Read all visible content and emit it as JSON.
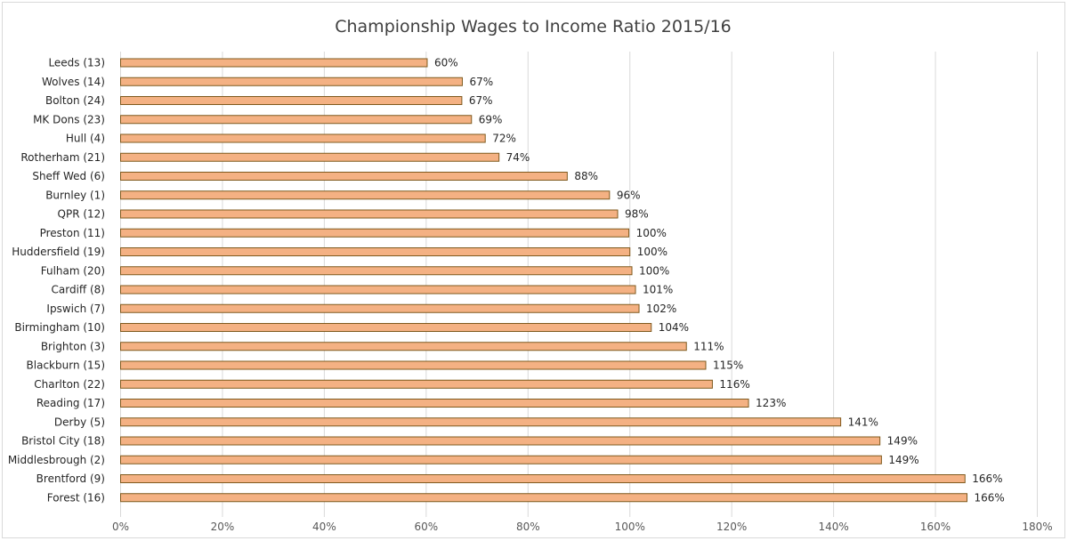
{
  "chart_data": {
    "type": "bar",
    "orientation": "horizontal",
    "title": "Championship Wages to Income Ratio 2015/16",
    "xlabel": "",
    "ylabel": "",
    "xlim": [
      0,
      180
    ],
    "x_ticks": [
      0,
      20,
      40,
      60,
      80,
      100,
      120,
      140,
      160,
      180
    ],
    "x_tick_labels": [
      "0%",
      "20%",
      "40%",
      "60%",
      "80%",
      "100%",
      "120%",
      "140%",
      "160%",
      "180%"
    ],
    "grid": true,
    "legend": "none",
    "bar_color": "#F4B183",
    "bar_edge_color": "#7F5A1E",
    "categories": [
      "Leeds (13)",
      "Wolves (14)",
      "Bolton (24)",
      "MK Dons (23)",
      "Hull (4)",
      "Rotherham (21)",
      "Sheff Wed (6)",
      "Burnley (1)",
      "QPR (12)",
      "Preston (11)",
      "Huddersfield (19)",
      "Fulham (20)",
      "Cardiff (8)",
      "Ipswich (7)",
      "Birmingham (10)",
      "Brighton (3)",
      "Blackburn (15)",
      "Charlton (22)",
      "Reading (17)",
      "Derby (5)",
      "Bristol City (18)",
      "Middlesbrough (2)",
      "Brentford (9)",
      "Forest (16)"
    ],
    "values": [
      60.2,
      67.1,
      67.0,
      68.9,
      71.6,
      74.3,
      87.7,
      96.0,
      97.6,
      99.8,
      100.0,
      100.4,
      101.1,
      101.8,
      104.2,
      111.1,
      114.9,
      116.2,
      123.3,
      141.4,
      149.1,
      149.4,
      165.8,
      166.2
    ],
    "data_labels": [
      "60%",
      "67%",
      "67%",
      "69%",
      "72%",
      "74%",
      "88%",
      "96%",
      "98%",
      "100%",
      "100%",
      "100%",
      "101%",
      "102%",
      "104%",
      "111%",
      "115%",
      "116%",
      "123%",
      "141%",
      "149%",
      "149%",
      "166%",
      "166%"
    ]
  }
}
